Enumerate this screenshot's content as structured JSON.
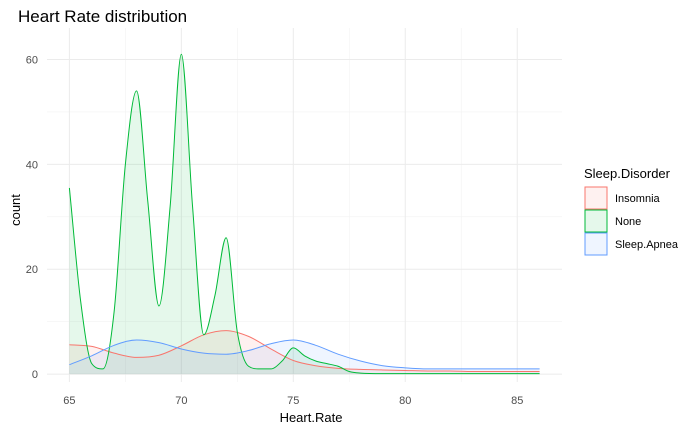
{
  "chart_data": {
    "type": "area",
    "title": "Heart Rate distribution",
    "xlabel": "Heart.Rate",
    "ylabel": "count",
    "xlim": [
      64.0,
      87.0
    ],
    "ylim": [
      -1.5,
      66.0
    ],
    "x_ticks": [
      65,
      70,
      75,
      80,
      85
    ],
    "y_ticks": [
      0,
      20,
      40,
      60
    ],
    "x_tick_labels": [
      "65",
      "70",
      "75",
      "80",
      "85"
    ],
    "y_tick_labels": [
      "0",
      "20",
      "40",
      "60"
    ],
    "grid": true,
    "legend": {
      "title": "Sleep.Disorder",
      "position": "right"
    },
    "series": [
      {
        "name": "Insomnia",
        "color": "#F8766D",
        "x": [
          65,
          66,
          67,
          68,
          69,
          70,
          71,
          72,
          73,
          74,
          75,
          76,
          77,
          78,
          79,
          80,
          81,
          82,
          83,
          84,
          85,
          86
        ],
        "y": [
          5.6,
          5.3,
          4.0,
          3.2,
          3.6,
          5.4,
          7.5,
          8.3,
          7.2,
          4.8,
          2.6,
          1.6,
          1.1,
          0.9,
          0.8,
          0.7,
          0.6,
          0.6,
          0.5,
          0.5,
          0.5,
          0.5
        ]
      },
      {
        "name": "None",
        "color": "#00BA38",
        "x": [
          65,
          65.5,
          66,
          66.5,
          67,
          67.5,
          68,
          68.5,
          69,
          69.5,
          70,
          70.5,
          71,
          71.5,
          72,
          72.5,
          73,
          73.5,
          74,
          74.5,
          75,
          75.5,
          76,
          76.5,
          77,
          77.5,
          78,
          79,
          80,
          81,
          82,
          83,
          84,
          85,
          86
        ],
        "y": [
          35.5,
          14.0,
          2.0,
          1.0,
          12.0,
          40.0,
          54.0,
          33.0,
          13.0,
          32.0,
          61.0,
          32.0,
          7.5,
          15.0,
          26.0,
          8.0,
          1.5,
          1.0,
          1.0,
          2.5,
          5.0,
          3.5,
          2.5,
          2.0,
          1.5,
          0.5,
          0.2,
          0.1,
          0.1,
          0.1,
          0.1,
          0.1,
          0.1,
          0.1,
          0.1
        ]
      },
      {
        "name": "Sleep.Apnea",
        "color": "#619CFF",
        "x": [
          65,
          66,
          67,
          68,
          69,
          70,
          71,
          72,
          73,
          74,
          75,
          76,
          77,
          78,
          79,
          80,
          81,
          82,
          83,
          84,
          85,
          86
        ],
        "y": [
          1.8,
          3.5,
          5.5,
          6.5,
          6.0,
          4.8,
          4.0,
          3.8,
          4.5,
          5.8,
          6.5,
          5.5,
          3.8,
          2.5,
          1.6,
          1.2,
          1.0,
          1.0,
          1.0,
          1.0,
          1.0,
          1.0
        ]
      }
    ]
  }
}
